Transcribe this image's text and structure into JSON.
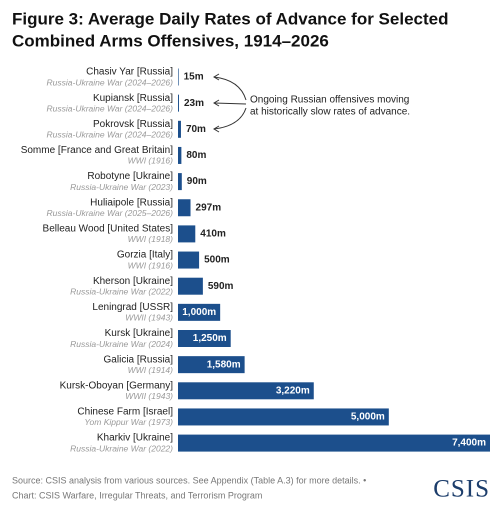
{
  "chart_data": {
    "type": "hbar",
    "title": [
      "Figure 3: Average Daily Rates of Advance for Selected",
      "Combined Arms Offensives, 1914–2026"
    ],
    "categories": [
      "Chasiv Yar [Russia]",
      "Kupiansk [Russia]",
      "Pokrovsk [Russia]",
      "Somme [France and Great Britain]",
      "Robotyne [Ukraine]",
      "Huliaipole [Russia]",
      "Belleau Wood [United States]",
      "Gorzia [Italy]",
      "Kherson [Ukraine]",
      "Leningrad [USSR]",
      "Kursk [Ukraine]",
      "Galicia [Russia]",
      "Kursk-Oboyan [Germany]",
      "Chinese Farm [Israel]",
      "Kharkiv [Ukraine]"
    ],
    "sublabels": [
      "Russia-Ukraine War (2024–2026)",
      "Russia-Ukraine War (2024–2026)",
      "Russia-Ukraine War (2024–2026)",
      "WWI (1916)",
      "Russia-Ukraine War (2023)",
      "Russia-Ukraine War (2025–2026)",
      "WWI (1918)",
      "WWI (1916)",
      "Russia-Ukraine War (2022)",
      "WWII (1943)",
      "Russia-Ukraine War (2024)",
      "WWI (1914)",
      "WWII (1943)",
      "Yom Kippur War (1973)",
      "Russia-Ukraine War (2022)"
    ],
    "values": [
      15,
      23,
      70,
      80,
      90,
      297,
      410,
      500,
      590,
      1000,
      1250,
      1580,
      3220,
      5000,
      7400
    ],
    "value_labels": [
      "15m",
      "23m",
      "70m",
      "80m",
      "90m",
      "297m",
      "410m",
      "500m",
      "590m",
      "1,000m",
      "1,250m",
      "1,580m",
      "3,220m",
      "5,000m",
      "7,400m"
    ],
    "color": "#1c4f8c",
    "annotation": [
      "Ongoing Russian offensives moving",
      "at historically slow rates of advance."
    ],
    "source": [
      "Source: CSIS analysis from various sources. See Appendix (Table A.3) for more details. •",
      "Chart: CSIS Warfare, Irregular Threats, and Terrorism Program"
    ],
    "logo": "CSIS"
  }
}
